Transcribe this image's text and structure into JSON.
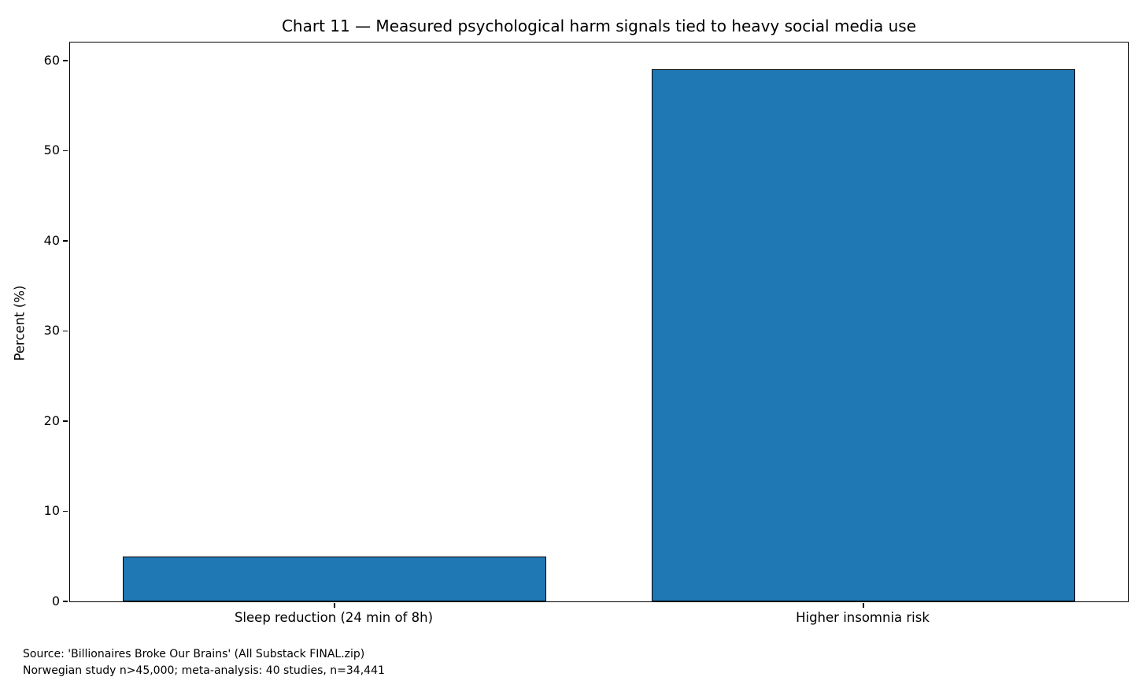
{
  "figure": {
    "title": "Chart 11 — Measured psychological harm signals tied to heavy social media use",
    "y_axis_label": "Percent (%)",
    "source_line1": "Source: 'Billionaires Broke Our Brains' (All Substack FINAL.zip)",
    "source_line2": "Norwegian study n>45,000; meta-analysis: 40 studies, n=34,441"
  },
  "chart_data": {
    "type": "bar",
    "title": "Chart 11 — Measured psychological harm signals tied to heavy social media use",
    "categories": [
      "Sleep reduction (24 min of 8h)",
      "Higher insomnia risk"
    ],
    "values": [
      5,
      59
    ],
    "xlabel": "",
    "ylabel": "Percent (%)",
    "ylim": [
      0,
      62
    ],
    "yticks": [
      0,
      10,
      20,
      30,
      40,
      50,
      60
    ],
    "bar_color": "#1f77b4",
    "bar_edge_color": "#000000",
    "bar_width_fraction": 0.8,
    "grid": false,
    "legend": null,
    "annotations": [
      "Source: 'Billionaires Broke Our Brains' (All Substack FINAL.zip)",
      "Norwegian study n>45,000; meta-analysis: 40 studies, n=34,441"
    ]
  }
}
